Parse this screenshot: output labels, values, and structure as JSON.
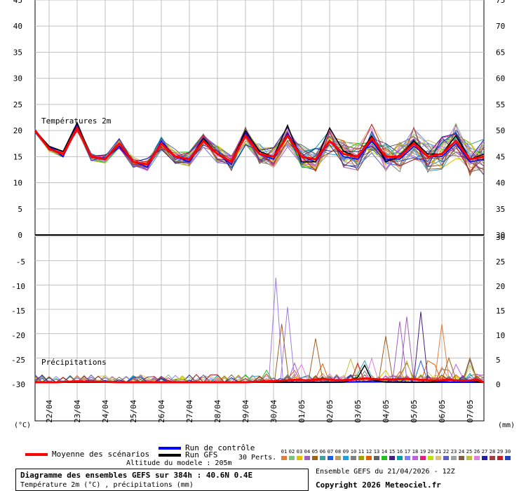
{
  "chart_data": {
    "type": "line",
    "dates": [
      "22/04",
      "23/04",
      "24/04",
      "25/04",
      "26/04",
      "27/04",
      "28/04",
      "29/04",
      "30/04",
      "01/05",
      "02/05",
      "03/05",
      "04/05",
      "05/05",
      "06/05",
      "07/05"
    ],
    "temperature_panel": {
      "label": "Températures 2m",
      "left_ticks": [
        "45",
        "40",
        "35",
        "30",
        "25",
        "20",
        "15",
        "10",
        "5",
        "0"
      ],
      "right_ticks": [
        "75",
        "70",
        "65",
        "60",
        "55",
        "50",
        "45",
        "40",
        "35",
        "30"
      ],
      "ylim": [
        0,
        45
      ],
      "x_range_hours": [
        0,
        384
      ],
      "mean": {
        "name": "Moyenne des scénarios",
        "x": [
          0,
          12,
          24,
          36,
          48,
          60,
          72,
          84,
          96,
          108,
          120,
          132,
          144,
          156,
          168,
          180,
          192,
          204,
          216,
          228,
          240,
          252,
          264,
          276,
          288,
          300,
          312,
          324,
          336,
          348,
          360,
          372,
          384
        ],
        "y": [
          20,
          16.5,
          15.5,
          20.5,
          15,
          14.5,
          17.5,
          14,
          13.5,
          17.5,
          15,
          14.5,
          18,
          15.5,
          14,
          19,
          15.5,
          15,
          19,
          15,
          14.5,
          18,
          15.5,
          15,
          18.5,
          15,
          15,
          17.5,
          15,
          15.5,
          18,
          14.5,
          15
        ]
      },
      "control": {
        "name": "Run de contrôle",
        "x": [
          0,
          12,
          24,
          36,
          48,
          60,
          72,
          84,
          96,
          108,
          120,
          132,
          144,
          156,
          168,
          180,
          192,
          204,
          216,
          228,
          240,
          252,
          264,
          276,
          288,
          300,
          312,
          324,
          336,
          348,
          360,
          372,
          384
        ],
        "y": [
          20,
          17,
          15,
          21,
          15,
          14.5,
          17,
          14,
          13,
          18,
          15,
          14,
          18.5,
          15.5,
          13.5,
          19.5,
          15.5,
          14.5,
          19.5,
          15,
          14,
          18,
          15,
          14.5,
          18,
          14.5,
          14.5,
          17,
          15,
          15,
          17.5,
          14,
          14.5
        ]
      },
      "gfs": {
        "name": "Run GFS",
        "x": [
          0,
          12,
          24,
          36,
          48,
          60,
          72,
          84,
          96,
          108,
          120,
          132,
          144,
          156,
          168,
          180,
          192,
          204,
          216,
          228,
          240,
          252,
          264,
          276,
          288,
          300,
          312,
          324,
          336,
          348,
          360,
          372,
          384
        ],
        "y": [
          20,
          17,
          16,
          21.5,
          15,
          14.5,
          17.5,
          14,
          13.5,
          17.5,
          15,
          14.5,
          18.5,
          15.5,
          14,
          20,
          16,
          15,
          21,
          14,
          14,
          20.5,
          16,
          15,
          19,
          14,
          15,
          18,
          15.5,
          15.5,
          19,
          14.5,
          15.5
        ]
      }
    },
    "precip_panel": {
      "label": "Précipitations",
      "left_ticks": [
        "0",
        "-5",
        "-10",
        "-15",
        "-20",
        "-25",
        "-30"
      ],
      "right_ticks": [
        "30",
        "25",
        "20",
        "15",
        "10",
        "5",
        "0"
      ],
      "ylim": [
        0,
        30
      ],
      "unit_left": "(°C)",
      "unit_right": "(mm)",
      "mean": {
        "name": "Moyenne des scénarios",
        "x": [
          0,
          18,
          36,
          54,
          72,
          90,
          108,
          126,
          144,
          162,
          180,
          198,
          210,
          222,
          234,
          246,
          258,
          270,
          282,
          294,
          306,
          318,
          330,
          342,
          354,
          366,
          378,
          384
        ],
        "y": [
          0,
          0,
          0.2,
          0.1,
          0,
          0,
          0,
          0,
          0,
          0,
          0,
          0.2,
          0.3,
          0.5,
          0.4,
          0.7,
          0.4,
          0.5,
          0.8,
          0.6,
          0.6,
          0.7,
          0.5,
          0.4,
          0.5,
          0.3,
          0.5,
          0
        ]
      },
      "control": {
        "name": "Run de contrôle",
        "x": [
          0,
          36,
          72,
          108,
          144,
          180,
          216,
          252,
          288,
          324,
          360,
          384
        ],
        "y": [
          0,
          0,
          0,
          0,
          0,
          0,
          0,
          0,
          0.1,
          0,
          0,
          0
        ]
      },
      "gfs": {
        "name": "Run GFS",
        "x": [
          0,
          24,
          48,
          72,
          96,
          120,
          144,
          168,
          192,
          216,
          240,
          264,
          276,
          282,
          288,
          300,
          312,
          336,
          360,
          372,
          384
        ],
        "y": [
          0,
          0,
          0,
          0,
          0,
          0,
          0,
          0,
          0.1,
          0,
          0,
          0,
          1,
          3.5,
          0.5,
          0,
          0,
          0,
          0.5,
          0.3,
          0
        ]
      },
      "peaks": [
        {
          "x": 206,
          "y": 21.5
        },
        {
          "x": 216,
          "y": 15.5
        },
        {
          "x": 211,
          "y": 12
        },
        {
          "x": 240,
          "y": 9
        },
        {
          "x": 300,
          "y": 9.5
        },
        {
          "x": 312,
          "y": 12.5
        },
        {
          "x": 318,
          "y": 13.5
        },
        {
          "x": 330,
          "y": 14.5
        },
        {
          "x": 348,
          "y": 12
        },
        {
          "x": 354,
          "y": 5
        },
        {
          "x": 372,
          "y": 5
        }
      ]
    }
  },
  "legend": {
    "mean_label": "Moyenne des scénarios",
    "control_label": "Run de contrôle",
    "gfs_label": "Run GFS",
    "perts_label": "30 Perts.",
    "altitude": "Altitude du modele : 205m",
    "colors": {
      "mean": "#ff0000",
      "control": "#0000ff",
      "gfs": "#000000"
    }
  },
  "perts": [
    {
      "n": "01",
      "c": "#e08040"
    },
    {
      "n": "02",
      "c": "#80c080"
    },
    {
      "n": "03",
      "c": "#e0c000"
    },
    {
      "n": "04",
      "c": "#a060c0"
    },
    {
      "n": "05",
      "c": "#a06020"
    },
    {
      "n": "06",
      "c": "#40a0a0"
    },
    {
      "n": "07",
      "c": "#2060e0"
    },
    {
      "n": "08",
      "c": "#c0a060"
    },
    {
      "n": "09",
      "c": "#20a0e0"
    },
    {
      "n": "10",
      "c": "#808080"
    },
    {
      "n": "11",
      "c": "#a0a000"
    },
    {
      "n": "12",
      "c": "#e06000"
    },
    {
      "n": "13",
      "c": "#606060"
    },
    {
      "n": "14",
      "c": "#20c020"
    },
    {
      "n": "15",
      "c": "#402080"
    },
    {
      "n": "16",
      "c": "#00a0a0"
    },
    {
      "n": "17",
      "c": "#8080ff"
    },
    {
      "n": "18",
      "c": "#c060e0"
    },
    {
      "n": "19",
      "c": "#e02080"
    },
    {
      "n": "20",
      "c": "#c0e000"
    },
    {
      "n": "21",
      "c": "#e0c080"
    },
    {
      "n": "22",
      "c": "#6060c0"
    },
    {
      "n": "23",
      "c": "#a0a0a0"
    },
    {
      "n": "24",
      "c": "#806040"
    },
    {
      "n": "25",
      "c": "#c0c040"
    },
    {
      "n": "26",
      "c": "#e080e0"
    },
    {
      "n": "27",
      "c": "#2020a0"
    },
    {
      "n": "28",
      "c": "#a04040"
    },
    {
      "n": "29",
      "c": "#c02020"
    },
    {
      "n": "30",
      "c": "#2040c0"
    }
  ],
  "footer": {
    "title": "Diagramme des ensembles GEFS sur 384h : 40.6N 0.4E",
    "subtitle": "Température 2m (°C) , précipitations (mm)",
    "run_info": "Ensemble GEFS du 21/04/2026 - 12Z",
    "copyright": "Copyright 2026 Meteociel.fr"
  }
}
